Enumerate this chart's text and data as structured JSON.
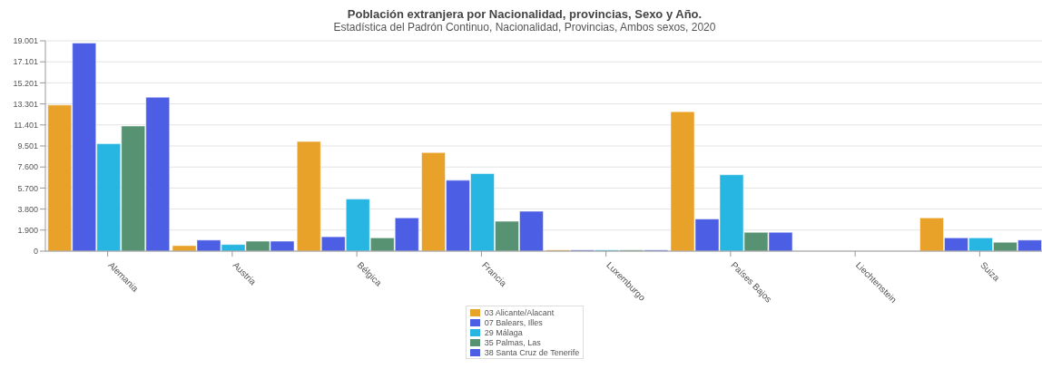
{
  "chart_data": {
    "type": "bar",
    "title": "Población extranjera por Nacionalidad, provincias, Sexo y Año.",
    "subtitle": "Estadística del Padrón Continuo, Nacionalidad, Provincias, Ambos sexos, 2020",
    "categories": [
      "Alemania",
      "Austria",
      "Bélgica",
      "Francia",
      "Luxemburgo",
      "Países Bajos",
      "Liechtenstein",
      "Suiza"
    ],
    "series": [
      {
        "name": "03 Alicante/Alacant",
        "color": "#e8a22a",
        "values": [
          13200,
          500,
          9900,
          8900,
          100,
          12600,
          0,
          3000
        ]
      },
      {
        "name": "07 Balears, Illes",
        "color": "#4b5ee4",
        "values": [
          18800,
          1000,
          1300,
          6400,
          100,
          2900,
          0,
          1200
        ]
      },
      {
        "name": "29 Málaga",
        "color": "#27b5e2",
        "values": [
          9700,
          600,
          4700,
          7000,
          100,
          6900,
          0,
          1200
        ]
      },
      {
        "name": "35 Palmas, Las",
        "color": "#579373",
        "values": [
          11300,
          900,
          1200,
          2700,
          100,
          1700,
          0,
          800
        ]
      },
      {
        "name": "38 Santa Cruz de Tenerife",
        "color": "#4b5ee4",
        "values": [
          13900,
          900,
          3000,
          3600,
          100,
          1700,
          0,
          1000
        ]
      }
    ],
    "ylim": [
      0,
      19001
    ],
    "yticks": [
      0,
      {
        "value": 1900,
        "label": "1.900"
      },
      {
        "value": 3800,
        "label": "3.800"
      },
      {
        "value": 5700,
        "label": "5.700"
      },
      {
        "value": 7600,
        "label": "7.600"
      },
      {
        "value": 9501,
        "label": "9.501"
      },
      {
        "value": 11401,
        "label": "11.401"
      },
      {
        "value": 13301,
        "label": "13.301"
      },
      {
        "value": 15201,
        "label": "15.201"
      },
      {
        "value": 17101,
        "label": "17.101"
      },
      {
        "value": 19001,
        "label": "19.001"
      }
    ],
    "grid": "y",
    "legend": "bottom"
  }
}
